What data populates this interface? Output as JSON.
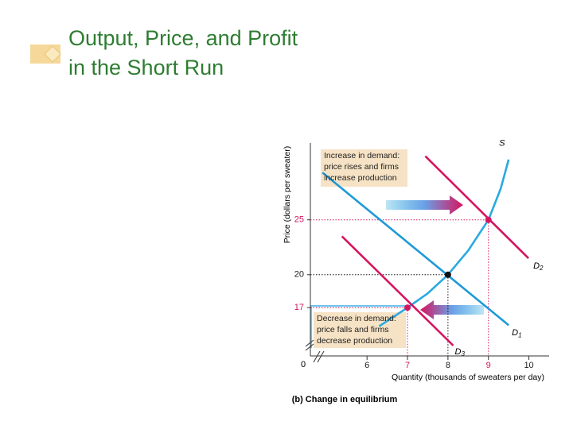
{
  "slide": {
    "title_lines": [
      "Output, Price, and Profit",
      "in the Short Run"
    ]
  },
  "chart_data": {
    "type": "line",
    "ylabel": "Price (dollars per sweater)",
    "xlabel": "Quantity (thousands of sweaters per day)",
    "caption": "(b) Change in equilibrium",
    "origin_label": "0",
    "xlim": [
      4.6,
      10.5
    ],
    "ylim": [
      12.6,
      32
    ],
    "xticks": [
      6,
      7,
      8,
      9,
      10
    ],
    "xtick_colors": [
      "#222222",
      "#d6145f",
      "#222222",
      "#d6145f",
      "#222222"
    ],
    "yticks": [
      17,
      20,
      25
    ],
    "ytick_colors": [
      "#d6145f",
      "#222222",
      "#d6145f"
    ],
    "series": [
      {
        "name": "S",
        "color": "#29a9e0",
        "x": [
          6.3,
          7,
          7.5,
          8,
          8.5,
          9,
          9.3,
          9.5
        ],
        "values": [
          15.3,
          17,
          18.3,
          20,
          22.2,
          25,
          27.8,
          30.5
        ]
      },
      {
        "name": "D1",
        "color": "#1e9ad6",
        "x": [
          4.9,
          9.5
        ],
        "values": [
          29.3,
          15.4
        ]
      },
      {
        "name": "D2",
        "color": "#d6145f",
        "x": [
          7.44,
          9.99
        ],
        "values": [
          30.8,
          21.5
        ]
      },
      {
        "name": "D3",
        "color": "#d6145f",
        "x": [
          5.38,
          8.13
        ],
        "values": [
          23.5,
          13.55
        ]
      }
    ],
    "points": [
      {
        "x": 9,
        "y": 25,
        "color": "#d6145f"
      },
      {
        "x": 8,
        "y": 20,
        "color": "#111111"
      },
      {
        "x": 7,
        "y": 17,
        "color": "#d6145f"
      }
    ],
    "annotations": [
      {
        "lines": [
          "Increase in demand:",
          "price rises and firms",
          "increase production"
        ]
      },
      {
        "lines": [
          "Decrease in demand:",
          "price falls and firms",
          "decrease production"
        ]
      }
    ]
  }
}
